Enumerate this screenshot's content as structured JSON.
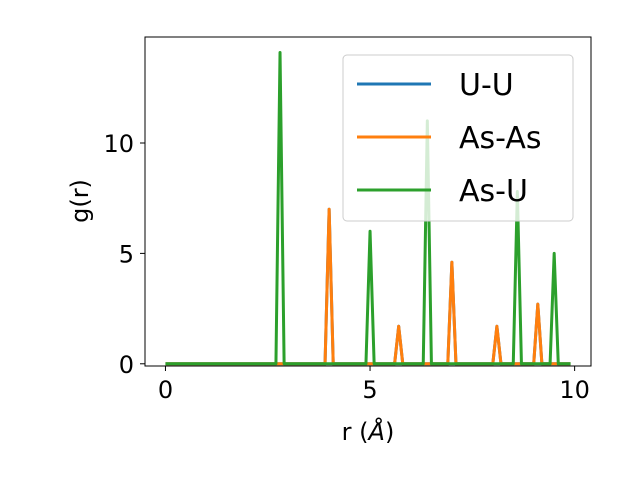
{
  "chart_data": {
    "type": "line",
    "xlabel": "r (",
    "xlabel_unit": "Å",
    "xlabel_close": ")",
    "ylabel": "g(r)",
    "xlim": [
      -0.5,
      10.4
    ],
    "ylim": [
      -0.1,
      14.8
    ],
    "xticks": [
      0,
      5,
      10
    ],
    "yticks": [
      0,
      5,
      10
    ],
    "grid": false,
    "legend_position": "top-right",
    "peak_halfwidth": 0.1,
    "x_range": [
      0,
      9.9
    ],
    "series": [
      {
        "name": "U-U",
        "color": "#1f77b4",
        "peaks": [
          [
            4.0,
            7.0
          ],
          [
            5.7,
            1.7
          ],
          [
            7.0,
            4.6
          ],
          [
            8.1,
            1.7
          ],
          [
            9.1,
            2.7
          ]
        ]
      },
      {
        "name": "As-As",
        "color": "#ff7f0e",
        "peaks": [
          [
            4.0,
            7.0
          ],
          [
            5.7,
            1.7
          ],
          [
            7.0,
            4.6
          ],
          [
            8.1,
            1.7
          ],
          [
            9.1,
            2.7
          ]
        ]
      },
      {
        "name": "As-U",
        "color": "#2ca02c",
        "peaks": [
          [
            2.8,
            14.1
          ],
          [
            5.0,
            6.0
          ],
          [
            6.4,
            11.0
          ],
          [
            8.6,
            7.8
          ],
          [
            9.5,
            5.0
          ]
        ]
      }
    ]
  }
}
